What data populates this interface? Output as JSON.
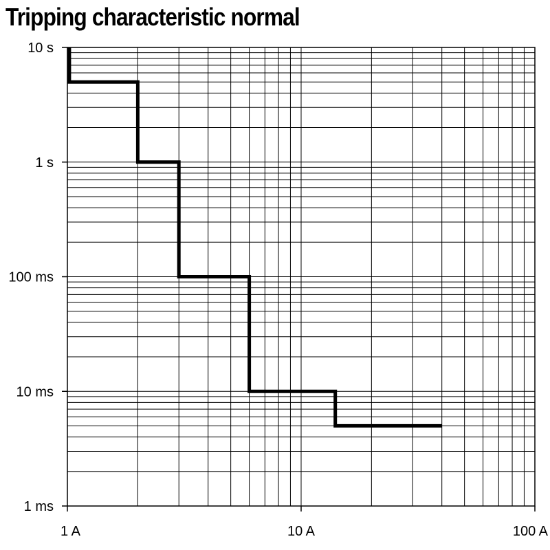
{
  "chart_data": {
    "type": "line",
    "title": "Tripping characteristic normal",
    "x_scale": "log",
    "y_scale": "log",
    "xlim": [
      1,
      100
    ],
    "ylim": [
      0.001,
      10
    ],
    "grid": true,
    "x_ticks": [
      {
        "value": 1,
        "label": "1 A"
      },
      {
        "value": 10,
        "label": "10 A"
      },
      {
        "value": 100,
        "label": "100 A"
      }
    ],
    "y_ticks": [
      {
        "value": 10,
        "label": "10 s"
      },
      {
        "value": 1,
        "label": "1 s"
      },
      {
        "value": 0.1,
        "label": "100 ms"
      },
      {
        "value": 0.01,
        "label": "10 ms"
      },
      {
        "value": 0.001,
        "label": "1 ms"
      }
    ],
    "series": [
      {
        "line_color": "#000000",
        "x": [
          1.02,
          1.02,
          2,
          2,
          3,
          3,
          6,
          6,
          14,
          14,
          40
        ],
        "y": [
          10,
          5,
          5,
          1,
          1,
          0.1,
          0.1,
          0.01,
          0.01,
          0.005,
          0.005
        ]
      }
    ]
  }
}
